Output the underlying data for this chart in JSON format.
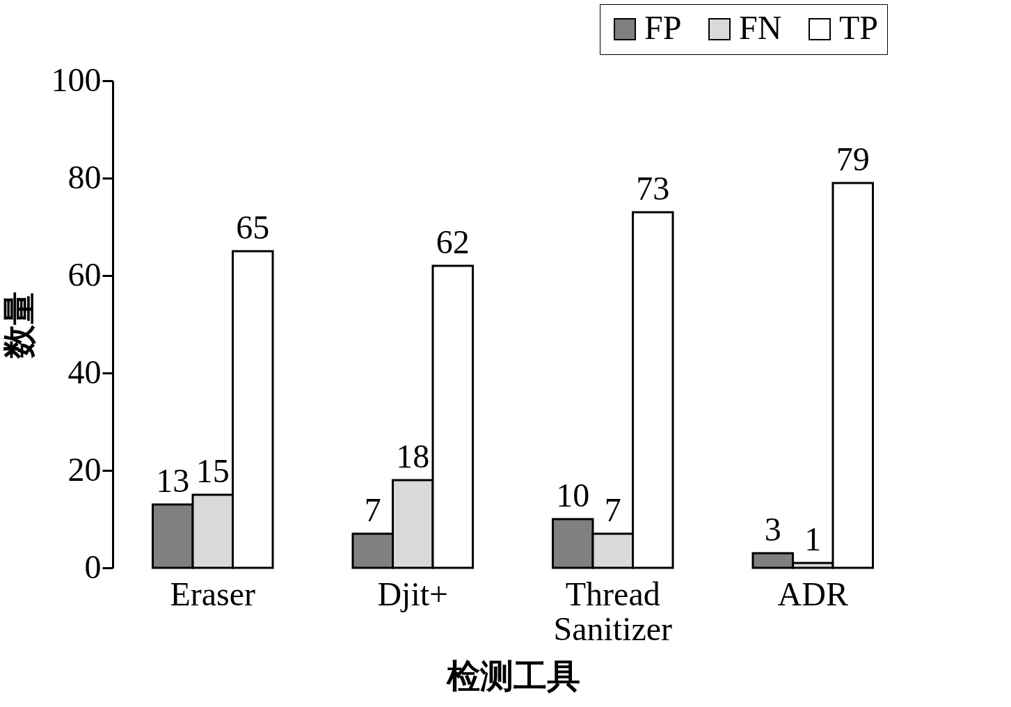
{
  "chart_data": {
    "type": "bar",
    "xlabel": "检测工具",
    "ylabel": "数量",
    "categories": [
      "Eraser",
      "Djit+",
      "Thread Sanitizer",
      "ADR"
    ],
    "series": [
      {
        "name": "FP",
        "color": "#808080",
        "values": [
          13,
          7,
          10,
          3
        ]
      },
      {
        "name": "FN",
        "color": "#d9d9d9",
        "values": [
          15,
          18,
          7,
          1
        ]
      },
      {
        "name": "TP",
        "color": "#ffffff",
        "values": [
          65,
          62,
          73,
          79
        ]
      }
    ],
    "ylim": [
      0,
      100
    ],
    "yticks": [
      0,
      20,
      40,
      60,
      80,
      100
    ],
    "grid": false,
    "legend": "top right",
    "data_labels": true
  }
}
